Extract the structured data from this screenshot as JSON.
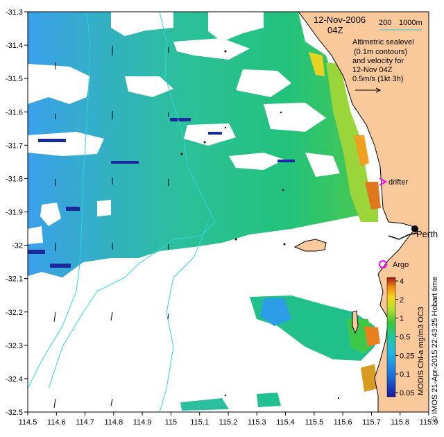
{
  "map": {
    "date": "12-Nov-2006",
    "time": "04Z",
    "bathy_legend": {
      "label_200": "200",
      "label_1000": "1000m",
      "line_color": "#2fd6d6"
    },
    "legend_lines": [
      "Altimetric sealevel",
      "(0.1m contours)",
      "and velocity for",
      "12-Nov 04Z",
      "0.5m/s (1kt 3h)"
    ],
    "annotations": {
      "drifter": "drifter",
      "argo": "Argo",
      "perth": "Perth"
    },
    "colorbar": {
      "ticks": [
        "4",
        "2",
        "1",
        "0.5",
        "0.25",
        "0.1",
        "0.05"
      ],
      "label": "MODIS Chl-a mg/m3 OC3"
    },
    "credit": "© IMOS 21-Apr-2015 22:43:25 Hobart time",
    "axes": {
      "x_ticks": [
        "114.5",
        "114.6",
        "114.7",
        "114.8",
        "114.9",
        "115",
        "115.1",
        "115.2",
        "115.3",
        "115.4",
        "115.5",
        "115.6",
        "115.7",
        "115.8",
        "115.9"
      ],
      "y_ticks": [
        "-31.3",
        "-31.4",
        "-31.5",
        "-31.6",
        "-31.7",
        "-31.8",
        "-31.9",
        "-32",
        "-32.1",
        "-32.2",
        "-32.3",
        "-32.4",
        "-32.5"
      ],
      "lon_range": [
        114.5,
        115.9
      ],
      "lat_range": [
        -32.5,
        -31.3
      ]
    },
    "colors": {
      "land": "#f9c89b",
      "bathy": "#2fd6d6",
      "drifter": "#ff00ff",
      "argo": "#ff00ff"
    }
  }
}
